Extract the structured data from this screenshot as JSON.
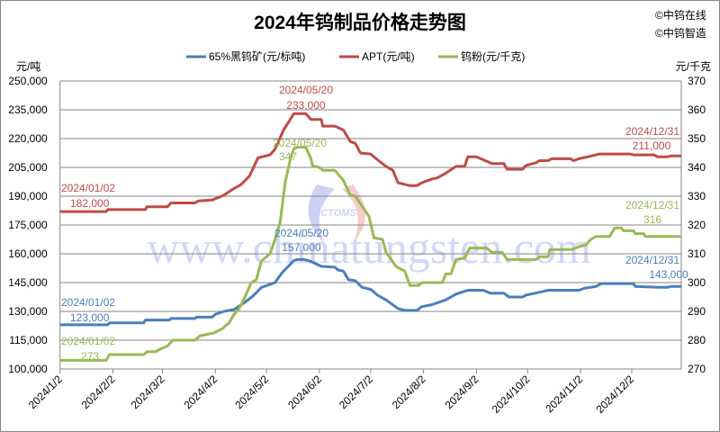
{
  "title": "2024年钨制品价格走势图",
  "copyright": [
    "©中钨在线",
    "©中钨智造"
  ],
  "watermark": {
    "site": "www.chinatungsten.com",
    "logo": "CTOMS"
  },
  "colors": {
    "ore": "#4a7ebb",
    "apt": "#be4b48",
    "powder": "#98b954",
    "grid": "#868686"
  },
  "chart_data": {
    "type": "line",
    "title": "2024年钨制品价格走势图",
    "left_axis": {
      "unit": "元/吨",
      "range": [
        100000,
        250000
      ],
      "ticks": [
        "100,000",
        "115,000",
        "130,000",
        "145,000",
        "160,000",
        "175,000",
        "190,000",
        "205,000",
        "220,000",
        "235,000",
        "250,000"
      ]
    },
    "right_axis": {
      "unit": "元/千克",
      "range": [
        270,
        370
      ],
      "ticks": [
        "270",
        "280",
        "290",
        "300",
        "310",
        "320",
        "330",
        "340",
        "350",
        "360",
        "370"
      ]
    },
    "x_axis": {
      "range": [
        "2024-01-02",
        "2024-12-31"
      ],
      "ticks": [
        "2024/1/2",
        "2024/2/2",
        "2024/3/2",
        "2024/4/2",
        "2024/5/2",
        "2024/6/2",
        "2024/7/2",
        "2024/8/2",
        "2024/9/2",
        "2024/10/2",
        "2024/11/2",
        "2024/12/2"
      ]
    },
    "grid": "horizontal",
    "legend_position": "top",
    "series": [
      {
        "name": "65%黑钨矿(元/标吨)",
        "axis": "left",
        "color": "#4a7ebb",
        "points": [
          [
            "2024-01-02",
            123000
          ],
          [
            "2024-01-30",
            123000
          ],
          [
            "2024-01-31",
            124000
          ],
          [
            "2024-02-20",
            124000
          ],
          [
            "2024-02-21",
            125500
          ],
          [
            "2024-03-06",
            125500
          ],
          [
            "2024-03-07",
            126300
          ],
          [
            "2024-03-21",
            126300
          ],
          [
            "2024-03-22",
            127000
          ],
          [
            "2024-03-31",
            127000
          ],
          [
            "2024-04-02",
            128500
          ],
          [
            "2024-04-07",
            130000
          ],
          [
            "2024-04-13",
            131000
          ],
          [
            "2024-04-19",
            134500
          ],
          [
            "2024-04-24",
            138000
          ],
          [
            "2024-04-29",
            142500
          ],
          [
            "2024-05-07",
            145000
          ],
          [
            "2024-05-11",
            150000
          ],
          [
            "2024-05-18",
            156500
          ],
          [
            "2024-05-20",
            157000
          ],
          [
            "2024-05-24",
            157000
          ],
          [
            "2024-05-28",
            156000
          ],
          [
            "2024-06-03",
            153500
          ],
          [
            "2024-06-11",
            153000
          ],
          [
            "2024-06-13",
            151500
          ],
          [
            "2024-06-16",
            151000
          ],
          [
            "2024-06-19",
            146500
          ],
          [
            "2024-06-23",
            146000
          ],
          [
            "2024-06-27",
            142500
          ],
          [
            "2024-07-02",
            141500
          ],
          [
            "2024-07-06",
            138500
          ],
          [
            "2024-07-11",
            136000
          ],
          [
            "2024-07-18",
            131500
          ],
          [
            "2024-07-22",
            130500
          ],
          [
            "2024-07-29",
            130500
          ],
          [
            "2024-08-01",
            132500
          ],
          [
            "2024-08-07",
            133500
          ],
          [
            "2024-08-15",
            136000
          ],
          [
            "2024-08-21",
            139000
          ],
          [
            "2024-08-28",
            141000
          ],
          [
            "2024-09-06",
            141000
          ],
          [
            "2024-09-10",
            139500
          ],
          [
            "2024-09-18",
            139500
          ],
          [
            "2024-09-21",
            137500
          ],
          [
            "2024-09-29",
            137500
          ],
          [
            "2024-10-01",
            138500
          ],
          [
            "2024-10-09",
            140000
          ],
          [
            "2024-10-14",
            141000
          ],
          [
            "2024-11-01",
            141000
          ],
          [
            "2024-11-04",
            142000
          ],
          [
            "2024-11-11",
            143000
          ],
          [
            "2024-11-14",
            144500
          ],
          [
            "2024-12-03",
            144500
          ],
          [
            "2024-12-04",
            143000
          ],
          [
            "2024-12-18",
            142500
          ],
          [
            "2024-12-23",
            142500
          ],
          [
            "2024-12-25",
            143000
          ],
          [
            "2024-12-31",
            143000
          ]
        ],
        "annotations": [
          {
            "date": "2024/01/02",
            "value": "123,000"
          },
          {
            "date": "2024/05/20",
            "value": "157,000"
          },
          {
            "date": "2024/12/31",
            "value": "143,000"
          }
        ]
      },
      {
        "name": "APT(元/吨)",
        "axis": "left",
        "color": "#be4b48",
        "points": [
          [
            "2024-01-02",
            182000
          ],
          [
            "2024-01-29",
            182000
          ],
          [
            "2024-01-30",
            183000
          ],
          [
            "2024-02-21",
            183000
          ],
          [
            "2024-02-22",
            184500
          ],
          [
            "2024-03-05",
            184500
          ],
          [
            "2024-03-07",
            186500
          ],
          [
            "2024-03-21",
            186500
          ],
          [
            "2024-03-23",
            187500
          ],
          [
            "2024-03-31",
            188000
          ],
          [
            "2024-04-07",
            190500
          ],
          [
            "2024-04-12",
            193500
          ],
          [
            "2024-04-17",
            196000
          ],
          [
            "2024-04-22",
            200500
          ],
          [
            "2024-04-27",
            210000
          ],
          [
            "2024-05-04",
            211500
          ],
          [
            "2024-05-07",
            214500
          ],
          [
            "2024-05-12",
            224500
          ],
          [
            "2024-05-18",
            233000
          ],
          [
            "2024-05-20",
            233000
          ],
          [
            "2024-05-25",
            233000
          ],
          [
            "2024-05-28",
            230000
          ],
          [
            "2024-06-03",
            230000
          ],
          [
            "2024-06-04",
            226500
          ],
          [
            "2024-06-11",
            226500
          ],
          [
            "2024-06-16",
            224500
          ],
          [
            "2024-06-20",
            218500
          ],
          [
            "2024-06-23",
            217500
          ],
          [
            "2024-06-26",
            212500
          ],
          [
            "2024-07-02",
            212000
          ],
          [
            "2024-07-06",
            209000
          ],
          [
            "2024-07-11",
            205500
          ],
          [
            "2024-07-15",
            203500
          ],
          [
            "2024-07-18",
            197000
          ],
          [
            "2024-07-25",
            195500
          ],
          [
            "2024-07-29",
            195500
          ],
          [
            "2024-08-01",
            197000
          ],
          [
            "2024-08-07",
            199000
          ],
          [
            "2024-08-10",
            199500
          ],
          [
            "2024-08-15",
            202000
          ],
          [
            "2024-08-21",
            205500
          ],
          [
            "2024-08-26",
            205500
          ],
          [
            "2024-08-28",
            210500
          ],
          [
            "2024-09-02",
            210500
          ],
          [
            "2024-09-06",
            209000
          ],
          [
            "2024-09-11",
            207000
          ],
          [
            "2024-09-18",
            207000
          ],
          [
            "2024-09-20",
            204000
          ],
          [
            "2024-09-29",
            204000
          ],
          [
            "2024-10-01",
            206000
          ],
          [
            "2024-10-07",
            207500
          ],
          [
            "2024-10-09",
            208500
          ],
          [
            "2024-10-14",
            208500
          ],
          [
            "2024-10-16",
            209500
          ],
          [
            "2024-10-27",
            209500
          ],
          [
            "2024-10-29",
            208500
          ],
          [
            "2024-11-01",
            209500
          ],
          [
            "2024-11-06",
            210500
          ],
          [
            "2024-11-11",
            211500
          ],
          [
            "2024-11-13",
            212000
          ],
          [
            "2024-12-01",
            212000
          ],
          [
            "2024-12-03",
            211500
          ],
          [
            "2024-12-15",
            211500
          ],
          [
            "2024-12-17",
            210500
          ],
          [
            "2024-12-23",
            210500
          ],
          [
            "2024-12-25",
            211000
          ],
          [
            "2024-12-31",
            211000
          ]
        ],
        "annotations": [
          {
            "date": "2024/01/02",
            "value": "182,000"
          },
          {
            "date": "2024/05/20",
            "value": "233,000"
          },
          {
            "date": "2024/12/31",
            "value": "211,000"
          }
        ]
      },
      {
        "name": "钨粉(元/千克)",
        "axis": "right",
        "color": "#98b954",
        "points": [
          [
            "2024-01-02",
            273
          ],
          [
            "2024-01-29",
            273
          ],
          [
            "2024-01-31",
            275
          ],
          [
            "2024-02-20",
            275
          ],
          [
            "2024-02-22",
            276
          ],
          [
            "2024-02-27",
            276
          ],
          [
            "2024-03-01",
            277
          ],
          [
            "2024-03-05",
            278
          ],
          [
            "2024-03-08",
            280
          ],
          [
            "2024-03-21",
            280
          ],
          [
            "2024-03-24",
            281.5
          ],
          [
            "2024-03-28",
            282
          ],
          [
            "2024-04-01",
            282.5
          ],
          [
            "2024-04-06",
            284
          ],
          [
            "2024-04-10",
            286
          ],
          [
            "2024-04-13",
            289
          ],
          [
            "2024-04-16",
            291
          ],
          [
            "2024-04-19",
            294.5
          ],
          [
            "2024-04-23",
            300
          ],
          [
            "2024-04-26",
            301
          ],
          [
            "2024-04-29",
            307.5
          ],
          [
            "2024-05-04",
            310
          ],
          [
            "2024-05-07",
            315
          ],
          [
            "2024-05-10",
            321
          ],
          [
            "2024-05-13",
            335
          ],
          [
            "2024-05-16",
            343
          ],
          [
            "2024-05-18",
            346.5
          ],
          [
            "2024-05-20",
            347
          ],
          [
            "2024-05-25",
            347
          ],
          [
            "2024-05-28",
            343
          ],
          [
            "2024-05-29",
            340.5
          ],
          [
            "2024-06-02",
            340
          ],
          [
            "2024-06-04",
            339
          ],
          [
            "2024-06-11",
            339
          ],
          [
            "2024-06-16",
            335.5
          ],
          [
            "2024-06-20",
            330.5
          ],
          [
            "2024-06-23",
            330
          ],
          [
            "2024-07-01",
            323
          ],
          [
            "2024-07-04",
            315.5
          ],
          [
            "2024-07-09",
            315
          ],
          [
            "2024-07-11",
            310.5
          ],
          [
            "2024-07-17",
            305.5
          ],
          [
            "2024-07-22",
            304
          ],
          [
            "2024-07-25",
            299
          ],
          [
            "2024-07-30",
            299
          ],
          [
            "2024-08-01",
            300
          ],
          [
            "2024-08-13",
            300
          ],
          [
            "2024-08-15",
            303
          ],
          [
            "2024-08-18",
            303
          ],
          [
            "2024-08-21",
            308
          ],
          [
            "2024-08-26",
            308.5
          ],
          [
            "2024-08-29",
            312
          ],
          [
            "2024-09-08",
            312
          ],
          [
            "2024-09-11",
            310.5
          ],
          [
            "2024-09-17",
            310.5
          ],
          [
            "2024-09-20",
            308
          ],
          [
            "2024-10-07",
            308
          ],
          [
            "2024-10-09",
            309
          ],
          [
            "2024-10-14",
            309
          ],
          [
            "2024-10-15",
            311.5
          ],
          [
            "2024-10-28",
            311.5
          ],
          [
            "2024-11-01",
            312.5
          ],
          [
            "2024-11-05",
            313
          ],
          [
            "2024-11-08",
            315
          ],
          [
            "2024-11-11",
            316
          ],
          [
            "2024-11-19",
            316
          ],
          [
            "2024-11-22",
            319
          ],
          [
            "2024-11-26",
            319
          ],
          [
            "2024-11-27",
            318
          ],
          [
            "2024-12-03",
            318
          ],
          [
            "2024-12-04",
            317
          ],
          [
            "2024-12-09",
            317
          ],
          [
            "2024-12-10",
            316
          ],
          [
            "2024-12-31",
            316
          ]
        ],
        "annotations": [
          {
            "date": "2024/01/02",
            "value": "273"
          },
          {
            "date": "2024/05/20",
            "value": "347"
          },
          {
            "date": "2024/12/31",
            "value": "316"
          }
        ]
      }
    ]
  }
}
